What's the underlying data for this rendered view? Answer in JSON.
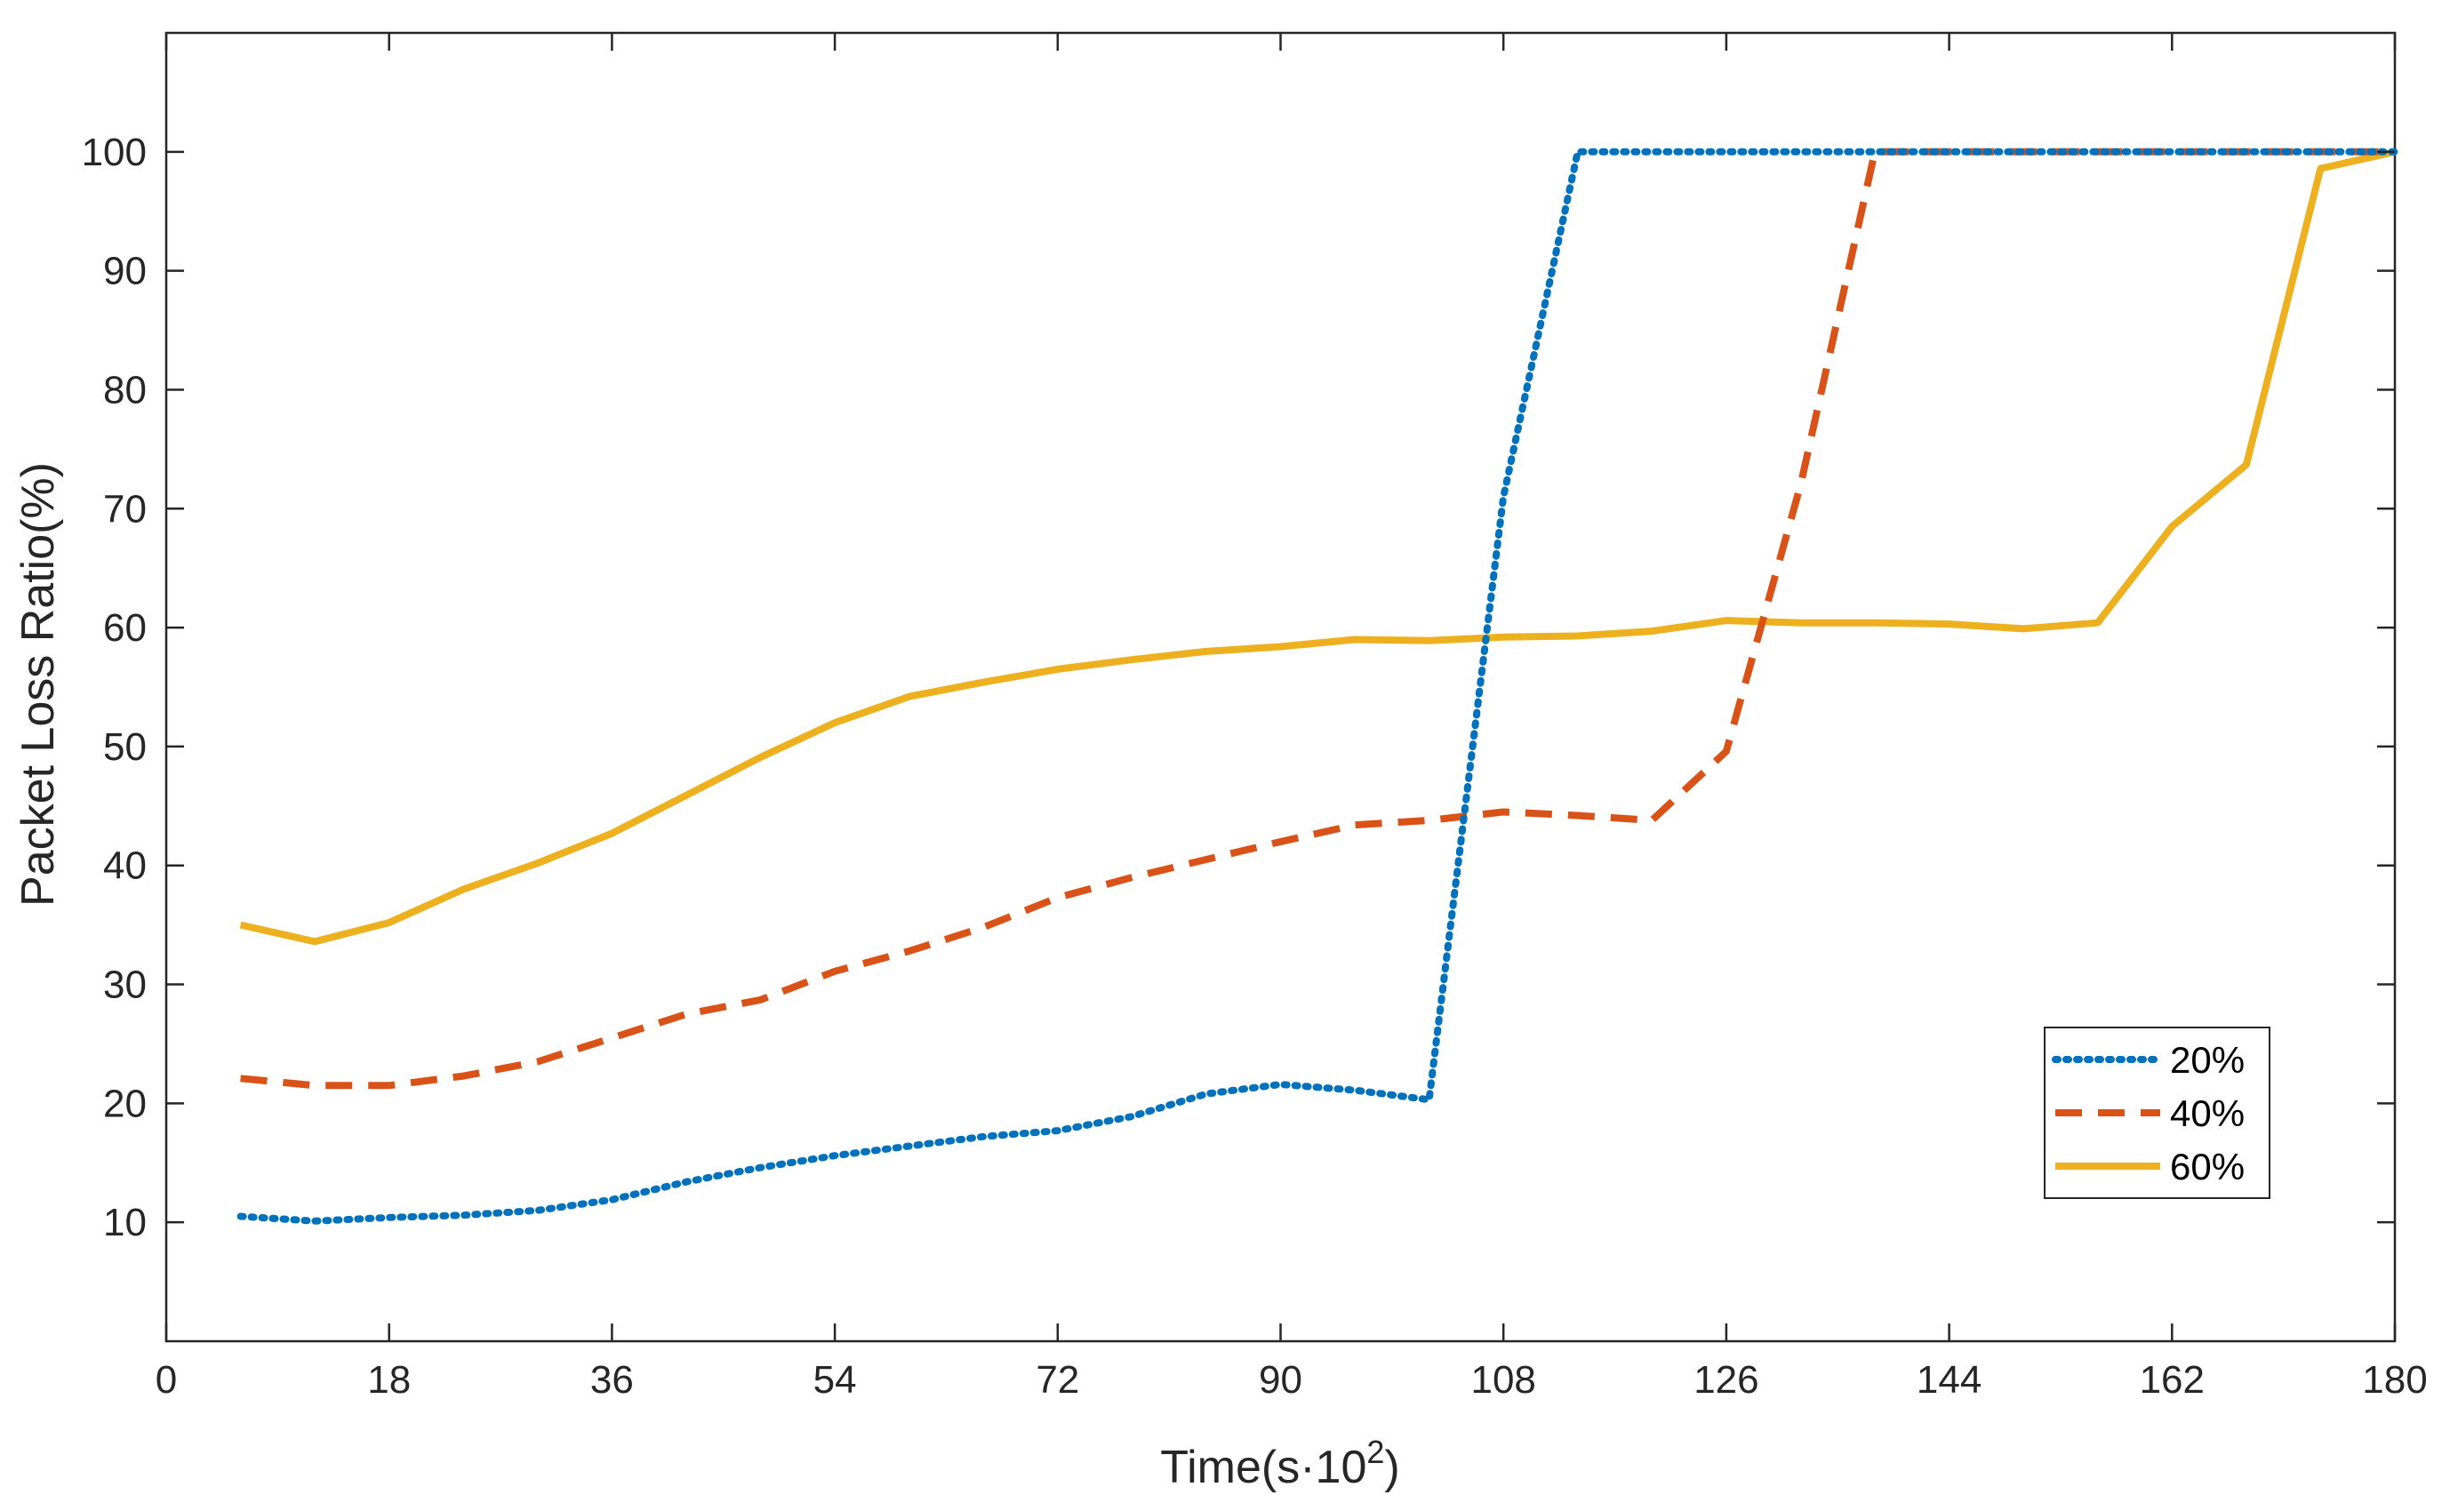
{
  "chart_data": {
    "type": "line",
    "title": "",
    "xlabel": "Time(s·10",
    "xlabel_sup": "2",
    "xlabel_close": ")",
    "ylabel": "Packet Loss Ratio(%)",
    "xlim": [
      0,
      180
    ],
    "ylim": [
      0,
      110
    ],
    "xticks": [
      0,
      18,
      36,
      54,
      72,
      90,
      108,
      126,
      144,
      162,
      180
    ],
    "xtick_labels": [
      "0",
      "18",
      "36",
      "54",
      "72",
      "90",
      "108",
      "126",
      "144",
      "162",
      "180"
    ],
    "yticks": [
      10,
      20,
      30,
      40,
      50,
      60,
      70,
      80,
      90,
      100
    ],
    "ytick_labels": [
      "10",
      "20",
      "30",
      "40",
      "50",
      "60",
      "70",
      "80",
      "90",
      "100"
    ],
    "grid": false,
    "legend_position": "bottom-right",
    "series": [
      {
        "name": "20%",
        "color": "#0072BD",
        "style": "dotted",
        "x": [
          6,
          12,
          18,
          24,
          30,
          36,
          42,
          48,
          54,
          60,
          66,
          72,
          78,
          84,
          90,
          96,
          102,
          108,
          114,
          120,
          126,
          132,
          138,
          144,
          150,
          156,
          162,
          168,
          174,
          180
        ],
        "y": [
          10.5,
          10.1,
          10.4,
          10.6,
          11.0,
          11.9,
          13.4,
          14.6,
          15.6,
          16.4,
          17.2,
          17.7,
          18.9,
          20.8,
          21.6,
          21.1,
          20.3,
          71.0,
          100,
          100,
          100,
          100,
          100,
          100,
          100,
          100,
          100,
          100,
          100,
          100
        ]
      },
      {
        "name": "40%",
        "color": "#D95319",
        "style": "dashed",
        "x": [
          6,
          12,
          18,
          24,
          30,
          36,
          42,
          48,
          54,
          60,
          66,
          72,
          78,
          84,
          90,
          96,
          102,
          108,
          114,
          120,
          126,
          132,
          138,
          144,
          150,
          156,
          162,
          168,
          174,
          180
        ],
        "y": [
          22.1,
          21.5,
          21.5,
          22.3,
          23.5,
          25.5,
          27.5,
          28.7,
          31.1,
          32.8,
          34.8,
          37.3,
          39.0,
          40.5,
          42.0,
          43.4,
          43.8,
          44.5,
          44.2,
          43.8,
          49.6,
          72.0,
          100,
          100,
          100,
          100,
          100,
          100,
          100,
          100
        ]
      },
      {
        "name": "60%",
        "color": "#EDB120",
        "style": "solid",
        "x": [
          6,
          12,
          18,
          24,
          30,
          36,
          42,
          48,
          54,
          60,
          66,
          72,
          78,
          84,
          90,
          96,
          102,
          108,
          114,
          120,
          126,
          132,
          138,
          144,
          150,
          156,
          162,
          168,
          174,
          180
        ],
        "y": [
          35.0,
          33.6,
          35.2,
          38.0,
          40.2,
          42.7,
          45.9,
          49.1,
          52.0,
          54.2,
          55.4,
          56.5,
          57.3,
          58.0,
          58.4,
          59.0,
          58.9,
          59.2,
          59.3,
          59.7,
          60.6,
          60.4,
          60.4,
          60.3,
          59.9,
          60.4,
          68.5,
          73.7,
          98.6,
          100
        ]
      }
    ]
  }
}
